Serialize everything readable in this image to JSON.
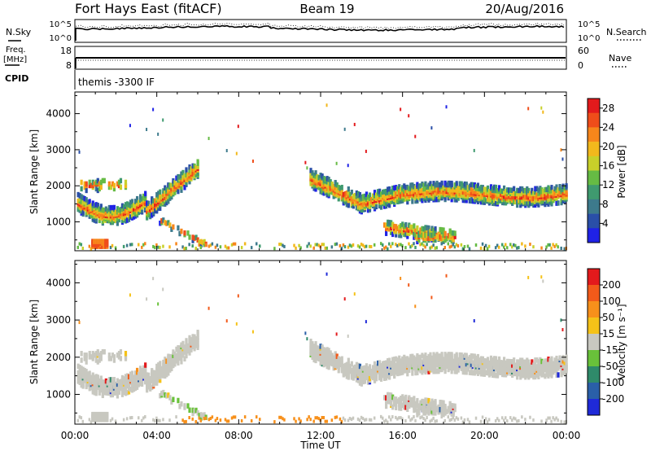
{
  "header": {
    "title": "Fort Hays East (fitACF)",
    "beam": "Beam 19",
    "date": "20/Aug/2016"
  },
  "summary_panels": {
    "noise": {
      "left_label": "N.Sky",
      "right_label": "N.Search",
      "left_ticks": [
        "10^5",
        "10^0"
      ],
      "right_ticks": [
        "10^5",
        "10^0"
      ]
    },
    "frequency": {
      "left_label_line1": "Freq.",
      "left_label_line2": "[MHz]",
      "right_label": "Nave",
      "left_ticks": [
        "18",
        "8"
      ],
      "right_ticks": [
        "60",
        "0"
      ]
    },
    "cpid": {
      "label": "CPID",
      "text": "themis -3300 IF"
    }
  },
  "chart_data": [
    {
      "type": "heatmap",
      "name": "power",
      "ylabel": "Slant Range [km]",
      "xlabel": "Time UT",
      "ylim": [
        200,
        4600
      ],
      "yticks": [
        "1000",
        "2000",
        "3000",
        "4000"
      ],
      "xlim": [
        "00:00",
        "24:00"
      ],
      "xticks": [
        "00:00",
        "04:00",
        "08:00",
        "12:00",
        "16:00",
        "20:00",
        "00:00"
      ],
      "colorbar": {
        "label": "Power [dB]",
        "ticks": [
          "4",
          "8",
          "12",
          "16",
          "20",
          "24",
          "28"
        ],
        "range": [
          0,
          30
        ],
        "colors": [
          "#1f22e6",
          "#2a4fa8",
          "#3d7a8c",
          "#3f9a6f",
          "#66bb44",
          "#c8d02a",
          "#f2b81c",
          "#f7861b",
          "#ef4d1a",
          "#e31a1c"
        ]
      }
    },
    {
      "type": "heatmap",
      "name": "velocity",
      "ylabel": "Slant Range [km]",
      "xlabel": "Time UT",
      "ylim": [
        200,
        4600
      ],
      "yticks": [
        "1000",
        "2000",
        "3000",
        "4000"
      ],
      "xlim": [
        "00:00",
        "24:00"
      ],
      "xticks": [
        "00:00",
        "04:00",
        "08:00",
        "12:00",
        "16:00",
        "20:00",
        "00:00"
      ],
      "colorbar": {
        "label": "Velocity [m s⁻¹]",
        "ticks": [
          "200",
          "100",
          "50",
          "15",
          "-15",
          "-50",
          "-100",
          "-200"
        ],
        "colors": [
          "#1f2ad8",
          "#2a5fa8",
          "#2f8a6a",
          "#69c13a",
          "#c8c8c0",
          "#f5c218",
          "#f7901b",
          "#f25a1a",
          "#e31a1c"
        ]
      }
    }
  ]
}
